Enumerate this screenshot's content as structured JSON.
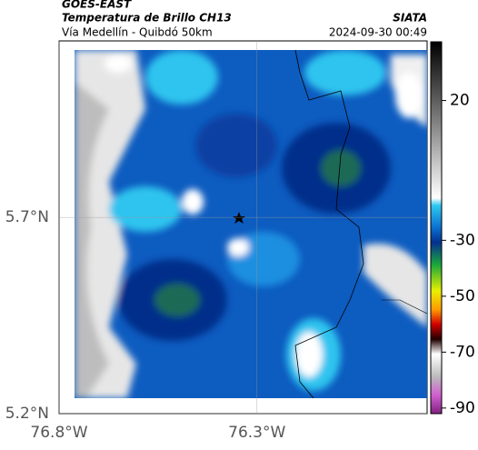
{
  "header": {
    "source": "GOES-EAST",
    "product": "Temperatura de Brillo CH13",
    "org": "SIATA",
    "route": "Vía Medellín - Quibdó 50km",
    "timestamp": "2024-09-30 00:49"
  },
  "map": {
    "xlim": [
      -76.8,
      -75.87
    ],
    "ylim": [
      5.2,
      6.15
    ],
    "xticks": [
      {
        "value": -76.8,
        "label": "76.8°W"
      },
      {
        "value": -76.3,
        "label": "76.3°W"
      }
    ],
    "yticks": [
      {
        "value": 5.2,
        "label": "5.2°N"
      },
      {
        "value": 5.7,
        "label": "5.7°N"
      }
    ],
    "grid": true
  },
  "colorbar": {
    "lim": [
      -92,
      41
    ],
    "ticks": [
      20,
      -30,
      -50,
      -70,
      -90
    ]
  }
}
